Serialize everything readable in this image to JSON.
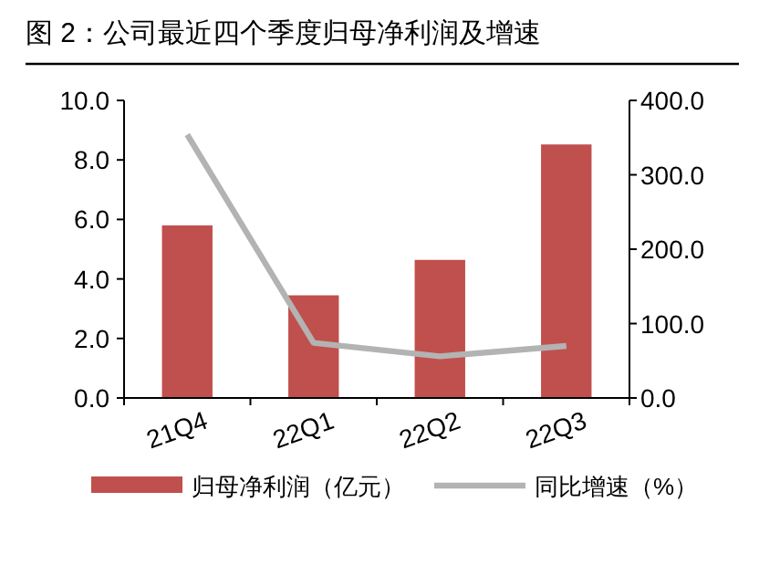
{
  "chart_data": {
    "type": "bar",
    "title": "图 2：公司最近四个季度归母净利润及增速",
    "categories": [
      "21Q4",
      "22Q1",
      "22Q2",
      "22Q3"
    ],
    "series": [
      {
        "name": "归母净利润（亿元）",
        "color": "#c0504d",
        "values": [
          5.8,
          3.45,
          4.64,
          8.52
        ]
      },
      {
        "name": "同比增速（%）",
        "type": "line",
        "axis": "y2",
        "color": "#b3b3b3",
        "values": [
          354,
          74,
          56,
          70
        ]
      }
    ],
    "ylim": [
      0,
      10
    ],
    "yticks": [
      {
        "value": 0,
        "label": "0.0"
      },
      {
        "value": 2,
        "label": "2.0"
      },
      {
        "value": 4,
        "label": "4.0"
      },
      {
        "value": 6,
        "label": "6.0"
      },
      {
        "value": 8,
        "label": "8.0"
      },
      {
        "value": 10,
        "label": "10.0"
      }
    ],
    "y2lim": [
      0,
      400
    ],
    "y2ticks": [
      {
        "value": 0,
        "label": "0.0"
      },
      {
        "value": 100,
        "label": "100.0"
      },
      {
        "value": 200,
        "label": "200.0"
      },
      {
        "value": 300,
        "label": "300.0"
      },
      {
        "value": 400,
        "label": "400.0"
      }
    ],
    "grid": false,
    "legend": "bottom"
  }
}
